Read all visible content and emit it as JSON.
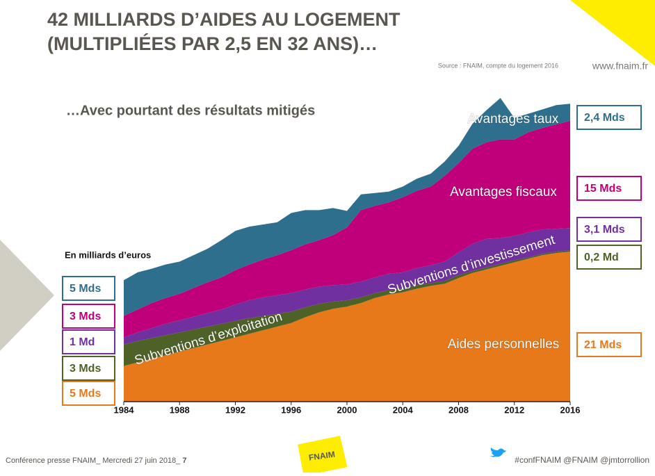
{
  "header": {
    "title_line1": "42 MILLIARDS D’AIDES AU LOGEMENT",
    "title_line2": "(MULTIPLIÉES PAR 2,5 EN 32 ANS)…",
    "source": "Source : FNAIM, compte du logement 2016",
    "website": "www.fnaim.fr"
  },
  "footer": {
    "left": "Conférence presse FNAIM_ Mercredi 27 juin 2018_ ",
    "page": "7",
    "logo": "FNAIM",
    "right": "#confFNAIM @FNAIM @jmtorrollion"
  },
  "chart_data": {
    "type": "stacked-area",
    "subtitle": "…Avec pourtant des résultats mitigés",
    "y_label": "En milliards d’euros",
    "x": [
      1984,
      1985,
      1986,
      1987,
      1988,
      1989,
      1990,
      1991,
      1992,
      1993,
      1994,
      1995,
      1996,
      1997,
      1998,
      1999,
      2000,
      2001,
      2002,
      2003,
      2004,
      2005,
      2006,
      2007,
      2008,
      2009,
      2010,
      2011,
      2012,
      2013,
      2014,
      2015,
      2016
    ],
    "xlim": [
      1984,
      2016
    ],
    "xticks": [
      1984,
      1988,
      1992,
      1996,
      2000,
      2004,
      2008,
      2012,
      2016
    ],
    "series": [
      {
        "name": "Aides personnelles",
        "color": "#e8791a",
        "values": [
          5,
          5.5,
          6,
          6.5,
          7,
          7.5,
          8,
          8.5,
          9,
          9.5,
          10,
          10.5,
          11,
          11.8,
          12.5,
          13,
          13.3,
          13.8,
          14.5,
          15,
          15.3,
          15.8,
          16.2,
          16.5,
          17.3,
          18,
          18.5,
          19,
          19.5,
          20,
          20.5,
          20.8,
          21
        ],
        "value_labels": [
          "5 Mds",
          null,
          null,
          null,
          null,
          null,
          null,
          null,
          null,
          null,
          null,
          null,
          null,
          null,
          null,
          null,
          null,
          null,
          null,
          null,
          null,
          null,
          null,
          null,
          null,
          null,
          null,
          null,
          null,
          null,
          null,
          null,
          "21 Mds"
        ]
      },
      {
        "name": "Subventions d’exploitation",
        "color": "#4e6228",
        "values": [
          3,
          3,
          2.9,
          2.8,
          2.7,
          2.6,
          2.5,
          2.4,
          2.3,
          2.2,
          2,
          1.8,
          1.6,
          1.4,
          1.2,
          1,
          0.9,
          0.8,
          0.7,
          0.6,
          0.5,
          0.5,
          0.4,
          0.4,
          0.4,
          0.3,
          0.3,
          0.3,
          0.3,
          0.2,
          0.2,
          0.2,
          0.2
        ],
        "value_labels": [
          "3 Mds",
          null,
          null,
          null,
          null,
          null,
          null,
          null,
          null,
          null,
          null,
          null,
          null,
          null,
          null,
          null,
          null,
          null,
          null,
          null,
          null,
          null,
          null,
          null,
          null,
          null,
          null,
          null,
          null,
          null,
          null,
          null,
          "0,2 Md"
        ]
      },
      {
        "name": "Subventions d’investissement",
        "color": "#7030a0",
        "values": [
          1,
          1.2,
          1.4,
          1.6,
          1.7,
          1.8,
          1.9,
          2,
          2.3,
          2.5,
          2.6,
          2.6,
          2.6,
          2.5,
          2.4,
          2.3,
          2.2,
          2.2,
          2.2,
          2.3,
          2.3,
          2.4,
          2.5,
          2.7,
          3.2,
          3.8,
          4,
          3.6,
          3.4,
          3.5,
          3.4,
          3.2,
          3.1
        ],
        "value_labels": [
          "1 Md",
          null,
          null,
          null,
          null,
          null,
          null,
          null,
          null,
          null,
          null,
          null,
          null,
          null,
          null,
          null,
          null,
          null,
          null,
          null,
          null,
          null,
          null,
          null,
          null,
          null,
          null,
          null,
          null,
          null,
          null,
          null,
          "3,1 Mds"
        ]
      },
      {
        "name": "Avantages fiscaux",
        "color": "#c0007a",
        "values": [
          3,
          3.2,
          3.5,
          3.6,
          3.7,
          4,
          4.3,
          4.5,
          4.8,
          5,
          5.3,
          5.6,
          6,
          6.3,
          6.5,
          7,
          8,
          10,
          10,
          10,
          10.5,
          10.8,
          11,
          12,
          12.5,
          13.3,
          13.5,
          13.8,
          13.5,
          14,
          14.2,
          14.6,
          15
        ],
        "value_labels": [
          "3 Mds",
          null,
          null,
          null,
          null,
          null,
          null,
          null,
          null,
          null,
          null,
          null,
          null,
          null,
          null,
          null,
          null,
          null,
          null,
          null,
          null,
          null,
          null,
          null,
          null,
          null,
          null,
          null,
          null,
          null,
          null,
          null,
          "15 Mds"
        ]
      },
      {
        "name": "Avantages taux",
        "color": "#2e6f8e",
        "values": [
          5,
          5.2,
          4.8,
          4.7,
          4.5,
          4.6,
          4.7,
          5.2,
          5.5,
          5.3,
          4.9,
          4.6,
          5.2,
          4.8,
          4.2,
          3.8,
          2.3,
          2.2,
          1.8,
          1.5,
          1.5,
          1.7,
          1.8,
          2,
          2.4,
          3.5,
          4.5,
          5.8,
          3,
          2.6,
          2.6,
          2.7,
          2.4
        ],
        "value_labels": [
          "5 Mds",
          null,
          null,
          null,
          null,
          null,
          null,
          null,
          null,
          null,
          null,
          null,
          null,
          null,
          null,
          null,
          null,
          null,
          null,
          null,
          null,
          null,
          null,
          null,
          null,
          null,
          null,
          null,
          null,
          null,
          null,
          null,
          "2,4 Mds"
        ]
      }
    ]
  }
}
